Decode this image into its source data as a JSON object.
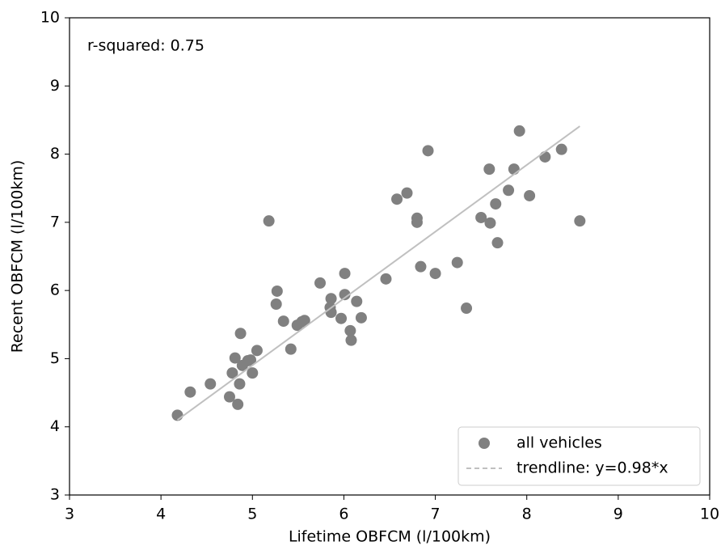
{
  "chart_data": {
    "type": "scatter",
    "xlabel": "Lifetime OBFCM (l/100km)",
    "ylabel": "Recent OBFCM (l/100km)",
    "annotation": "r-squared: 0.75",
    "xlim": [
      3,
      10
    ],
    "ylim": [
      3,
      10
    ],
    "xticks": [
      3,
      4,
      5,
      6,
      7,
      8,
      9,
      10
    ],
    "yticks": [
      3,
      4,
      5,
      6,
      7,
      8,
      9,
      10
    ],
    "legend": "lower right",
    "series": [
      {
        "name": "all vehicles",
        "color": "#808080",
        "x": [
          4.18,
          4.32,
          4.54,
          4.75,
          4.78,
          4.81,
          4.84,
          4.86,
          4.87,
          4.89,
          4.95,
          4.98,
          5.0,
          5.05,
          5.18,
          5.26,
          5.27,
          5.34,
          5.42,
          5.49,
          5.54,
          5.57,
          5.74,
          5.86,
          5.85,
          5.86,
          5.97,
          6.01,
          6.01,
          6.07,
          6.08,
          6.14,
          6.19,
          6.46,
          6.58,
          6.69,
          6.8,
          6.8,
          6.84,
          6.92,
          7.0,
          7.24,
          7.34,
          7.5,
          7.59,
          7.6,
          7.66,
          7.68,
          7.8,
          7.86,
          7.92,
          8.03,
          8.2,
          8.38,
          8.58
        ],
        "values": [
          4.17,
          4.51,
          4.63,
          4.44,
          4.79,
          5.01,
          4.33,
          4.63,
          5.37,
          4.9,
          4.97,
          4.98,
          4.79,
          5.12,
          7.02,
          5.8,
          5.99,
          5.55,
          5.14,
          5.49,
          5.54,
          5.56,
          6.11,
          5.88,
          5.75,
          5.68,
          5.59,
          5.94,
          6.25,
          5.41,
          5.27,
          5.84,
          5.6,
          6.17,
          7.34,
          7.43,
          7.06,
          7.0,
          6.35,
          8.05,
          6.25,
          6.41,
          5.74,
          7.07,
          7.78,
          6.99,
          7.27,
          6.7,
          7.47,
          7.78,
          8.34,
          7.39,
          7.96,
          8.07,
          7.02
        ]
      },
      {
        "name": "trendline: y=0.98*x",
        "color": "#c0c0c0",
        "line": true,
        "x": [
          4.18,
          8.58
        ],
        "values": [
          4.1,
          8.41
        ]
      }
    ]
  }
}
